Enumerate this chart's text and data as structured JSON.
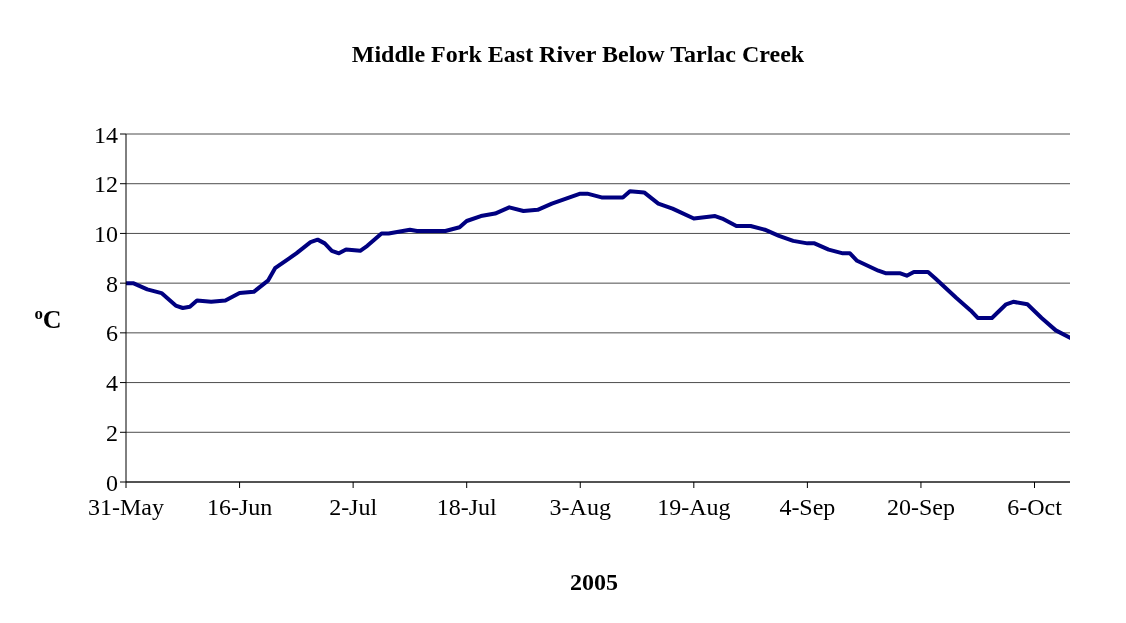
{
  "chart_data": {
    "type": "line",
    "title": "Middle Fork East River Below Tarlac Creek",
    "xlabel": "2005",
    "ylabel": "$^{o}$C",
    "x": [
      "2005-05-31",
      "2005-06-01",
      "2005-06-03",
      "2005-06-05",
      "2005-06-07",
      "2005-06-08",
      "2005-06-09",
      "2005-06-10",
      "2005-06-12",
      "2005-06-14",
      "2005-06-16",
      "2005-06-18",
      "2005-06-20",
      "2005-06-21",
      "2005-06-23",
      "2005-06-24",
      "2005-06-26",
      "2005-06-27",
      "2005-06-28",
      "2005-06-29",
      "2005-06-30",
      "2005-07-01",
      "2005-07-03",
      "2005-07-04",
      "2005-07-06",
      "2005-07-07",
      "2005-07-10",
      "2005-07-11",
      "2005-07-15",
      "2005-07-17",
      "2005-07-18",
      "2005-07-20",
      "2005-07-22",
      "2005-07-24",
      "2005-07-26",
      "2005-07-28",
      "2005-07-30",
      "2005-08-01",
      "2005-08-03",
      "2005-08-04",
      "2005-08-06",
      "2005-08-09",
      "2005-08-10",
      "2005-08-12",
      "2005-08-14",
      "2005-08-16",
      "2005-08-19",
      "2005-08-22",
      "2005-08-23",
      "2005-08-25",
      "2005-08-27",
      "2005-08-29",
      "2005-08-31",
      "2005-09-02",
      "2005-09-04",
      "2005-09-05",
      "2005-09-07",
      "2005-09-09",
      "2005-09-10",
      "2005-09-11",
      "2005-09-14",
      "2005-09-15",
      "2005-09-17",
      "2005-09-18",
      "2005-09-19",
      "2005-09-21",
      "2005-09-22",
      "2005-09-25",
      "2005-09-27",
      "2005-09-28",
      "2005-09-30",
      "2005-10-02",
      "2005-10-03",
      "2005-10-05",
      "2005-10-07",
      "2005-10-09",
      "2005-10-11"
    ],
    "series": [
      {
        "color": "#000080",
        "values": [
          8.0,
          8.0,
          7.75,
          7.6,
          7.1,
          7.0,
          7.05,
          7.3,
          7.25,
          7.3,
          7.6,
          7.65,
          8.1,
          8.6,
          9.0,
          9.2,
          9.65,
          9.75,
          9.6,
          9.3,
          9.2,
          9.35,
          9.3,
          9.5,
          10.0,
          10.0,
          10.15,
          10.1,
          10.1,
          10.25,
          10.5,
          10.7,
          10.8,
          11.05,
          10.9,
          10.95,
          11.2,
          11.4,
          11.6,
          11.6,
          11.45,
          11.45,
          11.7,
          11.65,
          11.2,
          11.0,
          10.6,
          10.7,
          10.6,
          10.3,
          10.3,
          10.15,
          9.9,
          9.7,
          9.6,
          9.6,
          9.35,
          9.2,
          9.2,
          8.9,
          8.5,
          8.4,
          8.4,
          8.3,
          8.45,
          8.45,
          8.2,
          7.4,
          6.9,
          6.6,
          6.6,
          7.15,
          7.25,
          7.15,
          6.6,
          6.1,
          5.8
        ]
      }
    ],
    "xlim": [
      "2005-05-31",
      "2005-10-11"
    ],
    "xticks": [
      {
        "value": "2005-05-31",
        "label": "31-May"
      },
      {
        "value": "2005-06-16",
        "label": "16-Jun"
      },
      {
        "value": "2005-07-02",
        "label": "2-Jul"
      },
      {
        "value": "2005-07-18",
        "label": "18-Jul"
      },
      {
        "value": "2005-08-03",
        "label": "3-Aug"
      },
      {
        "value": "2005-08-19",
        "label": "19-Aug"
      },
      {
        "value": "2005-09-04",
        "label": "4-Sep"
      },
      {
        "value": "2005-09-20",
        "label": "20-Sep"
      },
      {
        "value": "2005-10-06",
        "label": "6-Oct"
      }
    ],
    "ylim": [
      0,
      14
    ],
    "yticks": [
      0,
      2,
      4,
      6,
      8,
      10,
      12,
      14
    ],
    "grid": "y",
    "legend": false,
    "marker": "none",
    "line_style": "solid"
  }
}
